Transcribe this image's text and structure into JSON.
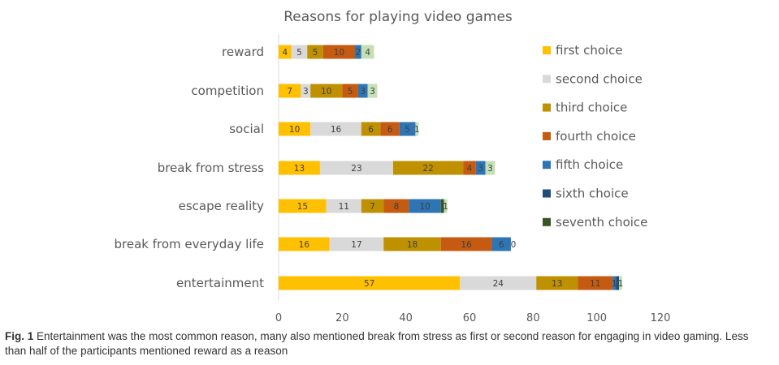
{
  "chart_data": {
    "type": "bar",
    "orientation": "horizontal",
    "stacked": true,
    "title": "Reasons for playing video games",
    "categories": [
      "reward",
      "competition",
      "social",
      "break from stress",
      "escape reality",
      "break from everyday life",
      "entertainment"
    ],
    "series": [
      {
        "name": "first choice",
        "color": "#FFC000",
        "values": [
          4,
          7,
          10,
          13,
          15,
          16,
          57
        ]
      },
      {
        "name": "second choice",
        "color": "#D9D9D9",
        "values": [
          5,
          3,
          16,
          23,
          11,
          17,
          24
        ]
      },
      {
        "name": "third choice",
        "color": "#BF9000",
        "values": [
          5,
          10,
          6,
          22,
          7,
          18,
          13
        ]
      },
      {
        "name": "fourth choice",
        "color": "#C55A11",
        "values": [
          10,
          5,
          6,
          4,
          8,
          16,
          11
        ]
      },
      {
        "name": "fifth choice",
        "color": "#2E75B6",
        "values": [
          2,
          3,
          5,
          3,
          10,
          6,
          1
        ]
      },
      {
        "name": "sixth choice",
        "color": "#1F4E79",
        "values": [
          0,
          0,
          0,
          0,
          0,
          0,
          1
        ]
      },
      {
        "name": "seventh choice",
        "color": "#375623",
        "values": [
          0,
          0,
          0,
          0,
          1,
          0,
          0
        ]
      },
      {
        "name": "",
        "color": "#C5E0B4",
        "values": [
          4,
          3,
          1,
          3,
          1,
          0,
          1
        ]
      }
    ],
    "segment_labels": [
      [
        "4",
        "5",
        "5",
        "10",
        "2",
        "",
        "",
        "4"
      ],
      [
        "7",
        "3",
        "10",
        "5",
        "3",
        "",
        "",
        "3"
      ],
      [
        "10",
        "16",
        "6",
        "6",
        "5",
        "",
        "",
        "1"
      ],
      [
        "13",
        "23",
        "22",
        "4",
        "3",
        "",
        "",
        "3"
      ],
      [
        "15",
        "11",
        "7",
        "8",
        "10",
        "",
        "",
        "1"
      ],
      [
        "16",
        "17",
        "18",
        "16",
        "6",
        "",
        "",
        "0"
      ],
      [
        "57",
        "24",
        "13",
        "11",
        "1",
        "",
        "",
        "1"
      ]
    ],
    "xlim": [
      0,
      120
    ],
    "xticks": [
      "0",
      "20",
      "40",
      "60",
      "80",
      "100",
      "120"
    ],
    "xlabel": "",
    "ylabel": "",
    "grid": false,
    "legend_position": "right",
    "legend_entries": [
      "first choice",
      "second choice",
      "third choice",
      "fourth choice",
      "fifth choice",
      "sixth choice",
      "seventh choice"
    ]
  },
  "caption": {
    "label": "Fig. 1",
    "text": " Entertainment was the most common reason, many also mentioned break from stress as first or second reason for engaging in video gaming. Less than half of the participants mentioned reward as a reason"
  }
}
